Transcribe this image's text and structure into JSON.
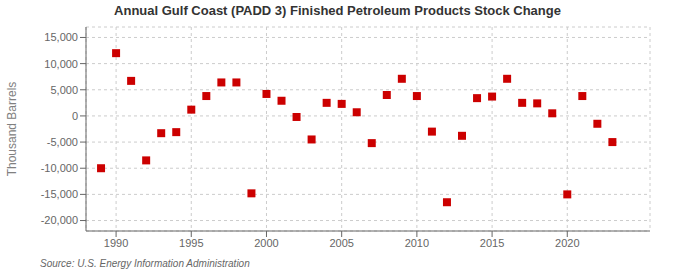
{
  "chart_data": {
    "type": "scatter",
    "title": "Annual Gulf Coast (PADD 3) Finished Petroleum Products Stock Change",
    "y_label": "Thousand Barrels",
    "annotations": [
      "Source: U.S. Energy Information Administration"
    ],
    "x": [
      1989,
      1990,
      1991,
      1992,
      1993,
      1994,
      1995,
      1996,
      1997,
      1998,
      1999,
      2000,
      2001,
      2002,
      2003,
      2004,
      2005,
      2006,
      2007,
      2008,
      2009,
      2010,
      2011,
      2012,
      2013,
      2014,
      2015,
      2016,
      2017,
      2018,
      2019,
      2020,
      2021,
      2022,
      2023
    ],
    "values": [
      -10000,
      12000,
      6700,
      -8500,
      -3300,
      -3100,
      1200,
      3800,
      6400,
      6400,
      -14800,
      4200,
      2900,
      -200,
      -4500,
      2500,
      2300,
      700,
      -5200,
      4000,
      7100,
      3800,
      -3000,
      -16500,
      -3800,
      3400,
      3700,
      7100,
      2500,
      2400,
      500,
      -15000,
      3800,
      -1500,
      -5000
    ],
    "color": "#cc0000",
    "marker": "square",
    "xlim": [
      1988.0,
      2025.5
    ],
    "xticks": [
      1990,
      1995,
      2000,
      2005,
      2010,
      2015,
      2020
    ],
    "ylim": [
      -22000,
      17000
    ],
    "yticks": [
      {
        "value": -20000,
        "label": "-20,000"
      },
      {
        "value": -15000,
        "label": "-15,000"
      },
      {
        "value": -10000,
        "label": "-10,000"
      },
      {
        "value": -5000,
        "label": "-5,000"
      },
      0,
      {
        "value": 5000,
        "label": "5,000"
      },
      {
        "value": 10000,
        "label": "10,000"
      },
      {
        "value": 15000,
        "label": "15,000"
      }
    ],
    "grid": true
  }
}
